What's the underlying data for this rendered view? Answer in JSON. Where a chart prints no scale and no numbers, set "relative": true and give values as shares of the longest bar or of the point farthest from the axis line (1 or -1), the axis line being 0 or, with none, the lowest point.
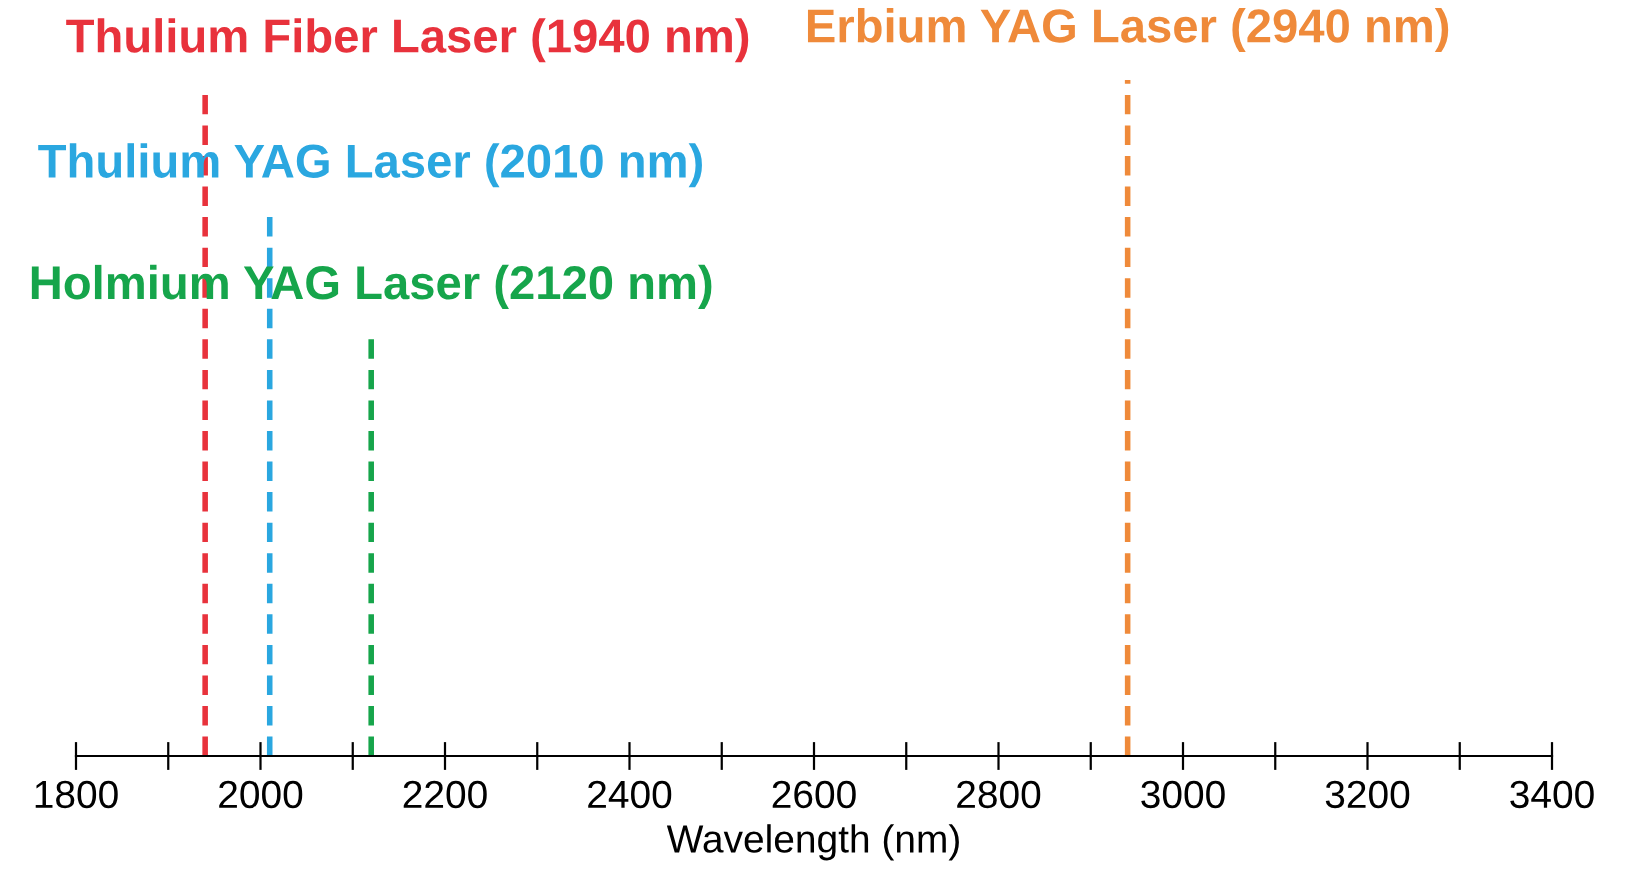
{
  "chart_data": {
    "type": "line",
    "relative": true,
    "xlabel": "Wavelength (nm)",
    "xlim": [
      1800,
      3400
    ],
    "xticks": [
      1800,
      {
        "value": 1900,
        "label": null
      },
      2000,
      {
        "value": 2100,
        "label": null
      },
      2200,
      {
        "value": 2300,
        "label": null
      },
      2400,
      {
        "value": 2500,
        "label": null
      },
      2600,
      {
        "value": 2700,
        "label": null
      },
      2800,
      {
        "value": 2900,
        "label": null
      },
      3000,
      {
        "value": 3100,
        "label": null
      },
      3200,
      {
        "value": 3300,
        "label": null
      },
      3400
    ],
    "tick_labels": "x",
    "line_style": "dashed",
    "marker": "none",
    "series": [
      {
        "name": "Thulium Fiber Laser (1940 nm)",
        "color": "#e8323c",
        "x": [
          1940,
          1940
        ],
        "values": [
          0,
          0.985
        ]
      },
      {
        "name": "Thulium YAG Laser (2010 nm)",
        "color": "#2aa7e0",
        "x": [
          2010,
          2010
        ],
        "values": [
          0,
          0.8
        ]
      },
      {
        "name": "Holmium YAG Laser (2120 nm)",
        "color": "#16a54b",
        "x": [
          2120,
          2120
        ],
        "values": [
          0,
          0.62
        ]
      },
      {
        "name": "Erbium YAG Laser (2940 nm)",
        "color": "#ef8a3a",
        "x": [
          2940,
          2940
        ],
        "values": [
          0,
          1
        ]
      }
    ]
  }
}
